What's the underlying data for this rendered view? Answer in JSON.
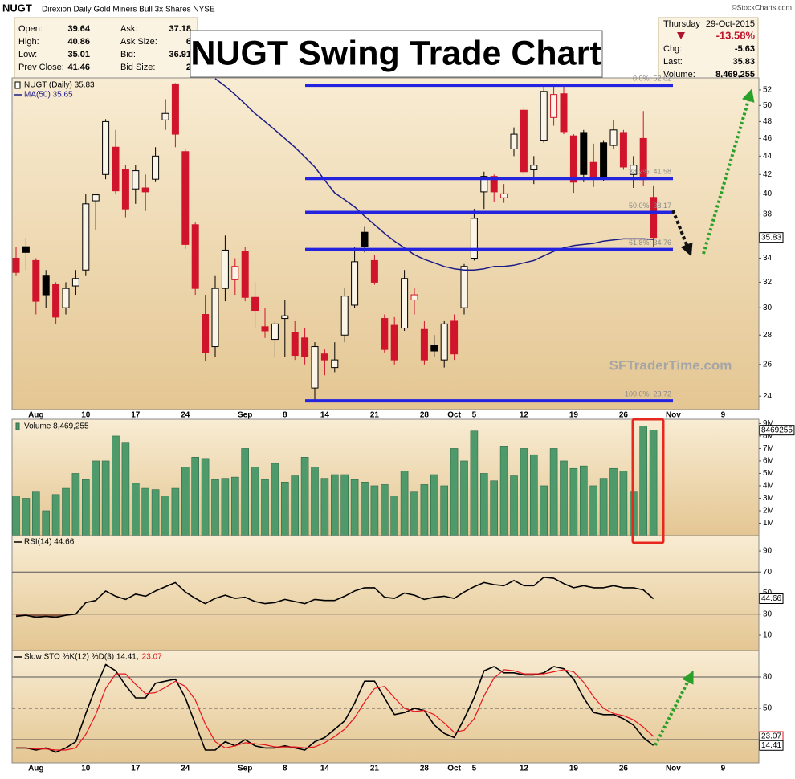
{
  "header": {
    "symbol": "NUGT",
    "description": "Direxion Daily Gold Miners Bull 3x Shares NYSE",
    "source": "©StockCharts.com"
  },
  "quote": {
    "left": [
      {
        "label": "Open:",
        "value": 39.64
      },
      {
        "label": "High:",
        "value": 40.86
      },
      {
        "label": "Low:",
        "value": 35.01
      },
      {
        "label": "Prev Close:",
        "value": 41.46
      }
    ],
    "middle": [
      {
        "label": "Ask:",
        "value": 37.18
      },
      {
        "label": "Ask Size:",
        "value": 6
      },
      {
        "label": "Bid:",
        "value": 36.91
      },
      {
        "label": "Bid Size:",
        "value": 2
      }
    ],
    "right": {
      "day": "Thursday",
      "date": "29-Oct-2015",
      "change_pct": "-13.58%",
      "rows": [
        {
          "label": "Chg:",
          "value": -5.63
        },
        {
          "label": "Last:",
          "value": 35.83
        },
        {
          "label": "Volume:",
          "value": "8,469,255"
        }
      ]
    }
  },
  "annotations": {
    "headline": "NUGT Swing Trade Chart",
    "watermark": "SFTraderTime.com"
  },
  "chart_data": [
    {
      "type": "candlestick",
      "name": "NUGT (Daily) 35.83",
      "categories": [
        null,
        null,
        "Aug",
        null,
        null,
        null,
        null,
        "10",
        null,
        null,
        null,
        null,
        "17",
        null,
        null,
        null,
        null,
        "24",
        null,
        null,
        null,
        null,
        null,
        "Sep",
        null,
        null,
        null,
        "8",
        null,
        null,
        null,
        "14",
        null,
        null,
        null,
        null,
        "21",
        null,
        null,
        null,
        null,
        "28",
        null,
        null,
        "Oct",
        null,
        "5",
        null,
        null,
        null,
        null,
        "12",
        null,
        null,
        null,
        null,
        "19",
        null,
        null,
        null,
        null,
        "26",
        null,
        null,
        null,
        null,
        "Nov",
        null,
        null,
        null,
        null,
        "9",
        null,
        null,
        null
      ],
      "open": [
        34,
        35,
        33.8,
        32.5,
        31.8,
        30,
        31.7,
        33,
        39.3,
        42,
        45,
        42.5,
        40.5,
        40.6,
        41.5,
        48.2,
        52.8,
        44.5,
        37,
        29.5,
        27.2,
        31.5,
        32.2,
        34.6,
        30.8,
        28.6,
        27.7,
        29.2,
        28.2,
        27.8,
        24.5,
        26.7,
        25.8,
        28,
        30.2,
        36.3,
        33.8,
        29.2,
        28.7,
        28.5,
        30.6,
        28.4,
        27.3,
        26.3,
        29,
        30,
        34,
        40.2,
        41.8,
        39.6,
        44.8,
        49.4,
        42.5,
        45.8,
        48.5,
        51.5,
        46.3,
        46.7,
        43.3,
        45.5,
        45.2,
        46.7,
        42,
        46,
        39.64,
        null,
        null,
        null,
        null,
        null,
        null,
        null,
        null,
        null,
        null
      ],
      "high": [
        35,
        35.8,
        34,
        33,
        32,
        32,
        33,
        40,
        40,
        48.3,
        47,
        43,
        43,
        42,
        45,
        50.8,
        52.9,
        44.8,
        37.2,
        31,
        32.5,
        36,
        34,
        35,
        32,
        30,
        29,
        30.6,
        29,
        28.5,
        27.5,
        27,
        27.5,
        31.5,
        35,
        36.8,
        34.3,
        29.5,
        29.3,
        33,
        31.5,
        29,
        28,
        29,
        29.5,
        33.5,
        38.5,
        42.3,
        42,
        41,
        47.3,
        49.8,
        44,
        52.5,
        52.8,
        52.6,
        46.5,
        47,
        45.4,
        45.8,
        48.2,
        47,
        44,
        49.3,
        40.86,
        null,
        null,
        null,
        null,
        null,
        null,
        null,
        null,
        null,
        null
      ],
      "low": [
        32.5,
        33,
        29.5,
        30,
        28.8,
        29.5,
        31,
        32.5,
        36.5,
        41.5,
        40,
        37.7,
        39,
        38.3,
        41.2,
        47,
        45,
        34.8,
        31,
        26.2,
        26.5,
        30.5,
        31,
        30.5,
        28.5,
        27.8,
        26.5,
        26.5,
        26.3,
        26,
        23.7,
        25.3,
        25.5,
        27.5,
        30,
        34.5,
        31.8,
        26.8,
        26,
        28.3,
        29.5,
        26,
        26.5,
        25.8,
        26.3,
        29.5,
        33.8,
        38.5,
        39.2,
        39.1,
        44,
        42,
        41,
        45.5,
        47.5,
        46.5,
        40.1,
        41.2,
        40.7,
        41.3,
        44.8,
        42.5,
        40.6,
        40.8,
        35.01,
        null,
        null,
        null,
        null,
        null,
        null,
        null,
        null,
        null,
        null
      ],
      "close": [
        32.8,
        34.5,
        30.5,
        31,
        29.3,
        31.5,
        32.3,
        39,
        39.9,
        48,
        40.3,
        38.5,
        42.4,
        40.2,
        44,
        49,
        46.5,
        35.2,
        31.5,
        26.8,
        31.5,
        34.7,
        33.3,
        30.8,
        29.8,
        28.3,
        28.8,
        29.4,
        26.6,
        26.5,
        27.2,
        26.3,
        26.3,
        30.9,
        33.7,
        35,
        32,
        27,
        26.3,
        32.3,
        31,
        26.3,
        26.9,
        28.8,
        26.7,
        33.3,
        37.6,
        41.8,
        40.2,
        40,
        46.5,
        42.3,
        43,
        51.8,
        51.4,
        46.8,
        41.2,
        42,
        41.7,
        41.8,
        47,
        42.8,
        43,
        41.46,
        35.83,
        null,
        null,
        null,
        null,
        null,
        null,
        null,
        null,
        null,
        null
      ],
      "up_color": "#000000",
      "down_color": "#d0142c",
      "overlays": [
        {
          "name": "MA(50) 35.65",
          "color": "#1c1c86",
          "values": [
            null,
            null,
            null,
            null,
            null,
            null,
            null,
            null,
            null,
            null,
            null,
            null,
            null,
            null,
            null,
            null,
            null,
            null,
            null,
            null,
            53.5,
            52.5,
            51.4,
            50.2,
            49.0,
            48.0,
            47.0,
            46.0,
            45.0,
            43.9,
            42.8,
            41.4,
            40.1,
            39.4,
            38.7,
            37.8,
            37.0,
            36.2,
            35.5,
            34.9,
            34.3,
            33.9,
            33.6,
            33.3,
            33.1,
            33.0,
            33.0,
            33.1,
            33.3,
            33.3,
            33.4,
            33.6,
            33.8,
            34.2,
            34.6,
            34.9,
            35.1,
            35.2,
            35.3,
            35.5,
            35.6,
            35.7,
            35.7,
            35.7,
            35.65,
            null,
            null,
            null,
            null,
            null,
            null,
            null,
            null,
            null,
            null
          ]
        }
      ],
      "fib_levels": [
        {
          "label": "0.0%: 52.62",
          "value": 52.62
        },
        {
          "label": "38.2%: 41.58",
          "value": 41.58
        },
        {
          "label": "50.0%: 38.17",
          "value": 38.17
        },
        {
          "label": "61.8%: 34.76",
          "value": 34.76
        },
        {
          "label": "100.0%: 23.72",
          "value": 23.72
        }
      ],
      "fib_color": "#2323e0",
      "ylim": [
        23.2,
        53.6
      ],
      "yticks": [
        24,
        26,
        28,
        30,
        32,
        34,
        36,
        38,
        40,
        42,
        44,
        46,
        48,
        50,
        52
      ],
      "log_scale": true,
      "grid": false
    },
    {
      "type": "bar",
      "name": "Volume 8,469,255",
      "color": "#4f9a6b",
      "values": [
        3200000,
        3000000,
        3500000,
        2000000,
        3300000,
        3800000,
        5000000,
        4500000,
        6000000,
        6000000,
        8000000,
        7500000,
        4200000,
        3800000,
        3700000,
        3200000,
        3800000,
        5500000,
        6300000,
        6200000,
        4500000,
        4600000,
        4700000,
        7000000,
        5500000,
        4500000,
        5800000,
        4300000,
        4800000,
        6300000,
        5500000,
        4600000,
        4900000,
        4900000,
        4500000,
        4300000,
        4000000,
        4100000,
        3200000,
        5200000,
        3500000,
        4100000,
        4900000,
        4000000,
        7000000,
        6000000,
        8400000,
        5000000,
        4400000,
        7200000,
        4800000,
        7000000,
        6500000,
        4000000,
        7000000,
        6000000,
        5400000,
        5600000,
        4000000,
        4600000,
        5400000,
        5200000,
        3500000,
        8800000,
        8469255,
        null,
        null,
        null,
        null,
        null,
        null,
        null,
        null,
        null,
        null
      ],
      "ylim": [
        0,
        9350000
      ],
      "yticks": [
        {
          "value": 1000000,
          "label": "1M"
        },
        {
          "value": 2000000,
          "label": "2M"
        },
        {
          "value": 3000000,
          "label": "3M"
        },
        {
          "value": 4000000,
          "label": "4M"
        },
        {
          "value": 5000000,
          "label": "5M"
        },
        {
          "value": 6000000,
          "label": "6M"
        },
        {
          "value": 7000000,
          "label": "7M"
        },
        {
          "value": 8000000,
          "label": "8M"
        },
        {
          "value": 9000000,
          "label": "9M"
        }
      ],
      "grid": false
    },
    {
      "type": "line",
      "name": "RSI(14) 44.66",
      "color": "#000000",
      "oversold_fill": "#8c5a40",
      "values": [
        28,
        29,
        27,
        28,
        27,
        29,
        30,
        41,
        43,
        52,
        47,
        44,
        49,
        47,
        52,
        56,
        60,
        51,
        45,
        40,
        45,
        48,
        45,
        46,
        42,
        40,
        41,
        44,
        42,
        40,
        44,
        43,
        43,
        47,
        52,
        55,
        55,
        46,
        45,
        50,
        48,
        44,
        46,
        47,
        45,
        51,
        56,
        60,
        58,
        57,
        62,
        57,
        57,
        65,
        64,
        59,
        55,
        57,
        55,
        55,
        57,
        55,
        55,
        53,
        44.66,
        null,
        null,
        null,
        null,
        null,
        null,
        null,
        null,
        null,
        null
      ],
      "ylim": [
        -4.5,
        104.5
      ],
      "yticks": [
        10,
        30,
        50,
        70,
        90
      ],
      "reference_lines": [
        70,
        50,
        30
      ]
    },
    {
      "type": "line",
      "categories": [
        null,
        null,
        "Aug",
        null,
        null,
        null,
        null,
        "10",
        null,
        null,
        null,
        null,
        "17",
        null,
        null,
        null,
        null,
        "24",
        null,
        null,
        null,
        null,
        null,
        "Sep",
        null,
        null,
        null,
        "8",
        null,
        null,
        null,
        "14",
        null,
        null,
        null,
        null,
        "21",
        null,
        null,
        null,
        null,
        "28",
        null,
        null,
        "Oct",
        null,
        "5",
        null,
        null,
        null,
        null,
        "12",
        null,
        null,
        null,
        null,
        "19",
        null,
        null,
        null,
        null,
        "26",
        null,
        null,
        null,
        null,
        "Nov",
        null,
        null,
        null,
        null,
        "9",
        null,
        null,
        null
      ],
      "series": [
        {
          "name": "Slow STO %K(12) %D(3) 14.41,",
          "color": "#000000",
          "values": [
            12,
            12,
            10,
            12,
            8,
            12,
            18,
            45,
            70,
            92,
            86,
            72,
            60,
            60,
            74,
            76,
            78,
            60,
            35,
            10,
            10,
            18,
            14,
            20,
            14,
            12,
            12,
            14,
            12,
            10,
            18,
            22,
            30,
            38,
            55,
            76,
            76,
            60,
            44,
            46,
            50,
            48,
            34,
            26,
            22,
            40,
            60,
            86,
            90,
            84,
            84,
            82,
            82,
            84,
            90,
            88,
            78,
            60,
            46,
            44,
            44,
            40,
            34,
            22,
            14.41,
            null,
            null,
            null,
            null,
            null,
            null,
            null,
            null,
            null,
            null
          ]
        },
        {
          "name": "23.07",
          "color": "#e8141e",
          "values": [
            12,
            12,
            11,
            11,
            10,
            10,
            12,
            25,
            44,
            69,
            83,
            83,
            73,
            64,
            65,
            70,
            76,
            71,
            58,
            35,
            18,
            12,
            14,
            17,
            16,
            15,
            13,
            13,
            13,
            12,
            13,
            17,
            23,
            30,
            41,
            56,
            69,
            71,
            60,
            50,
            47,
            48,
            44,
            36,
            27,
            29,
            40,
            62,
            79,
            87,
            86,
            83,
            83,
            83,
            85,
            87,
            85,
            75,
            61,
            50,
            45,
            43,
            39,
            32,
            23.07,
            null,
            null,
            null,
            null,
            null,
            null,
            null,
            null,
            null,
            null
          ]
        }
      ],
      "ylim": [
        -2.3,
        105.4
      ],
      "yticks": [
        20,
        50,
        80
      ],
      "reference_lines": [
        80,
        50,
        20
      ]
    }
  ]
}
